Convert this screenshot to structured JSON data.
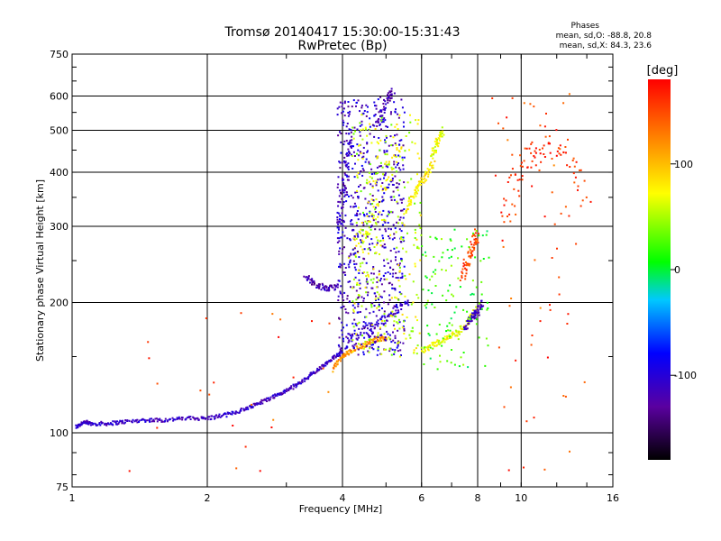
{
  "chart_data": {
    "type": "scatter",
    "title": "Tromsø 20140417 15:30:00-15:31:43",
    "subtitle": "RwPretec (Bp)",
    "xlabel": "Frequency [MHz]",
    "ylabel": "Stationary phase Virtual Height [km]",
    "x_scale": "log",
    "y_scale": "log",
    "xlim": [
      1,
      16
    ],
    "ylim": [
      75,
      750
    ],
    "x_ticks": [
      1,
      2,
      4,
      6,
      8,
      10,
      16
    ],
    "y_ticks": [
      75,
      100,
      200,
      300,
      400,
      500,
      600,
      750
    ],
    "grid": true,
    "colorbar": {
      "label": "[deg]",
      "range": [
        -180,
        180
      ],
      "ticks": [
        100,
        0,
        -100
      ]
    },
    "stats": {
      "heading": "Phases",
      "line_o": "mean, sd,O: -88.8, 20.8",
      "line_x": "mean, sd,X: 84.3, 23.6"
    },
    "traces": [
      {
        "f": [
          1.02,
          1.06,
          1.1,
          1.2,
          1.3,
          1.45,
          1.6,
          1.8,
          2.0,
          2.2,
          2.4,
          2.6,
          2.8,
          3.0,
          3.2,
          3.4,
          3.6,
          3.8,
          4.0
        ],
        "h": [
          103,
          106,
          105,
          105,
          106,
          107,
          107,
          108,
          108,
          110,
          113,
          117,
          121,
          125,
          130,
          136,
          142,
          148,
          155
        ],
        "phase": -110,
        "spread": 0.01
      },
      {
        "f": [
          3.3,
          3.5,
          3.7,
          3.9
        ],
        "h": [
          230,
          220,
          215,
          218
        ],
        "phase": -120,
        "spread": 0.015
      },
      {
        "f": [
          3.8,
          4.0,
          4.2,
          4.5,
          4.8,
          5.0
        ],
        "h": [
          140,
          150,
          155,
          160,
          165,
          165
        ],
        "phase": 120,
        "spread": 0.012
      },
      {
        "f": [
          4.0,
          4.4,
          4.8,
          5.2,
          5.6
        ],
        "h": [
          160,
          170,
          180,
          190,
          200
        ],
        "phase": -105,
        "spread": 0.03
      },
      {
        "f": [
          3.9,
          4.0,
          4.1,
          4.2
        ],
        "h": [
          300,
          350,
          420,
          500
        ],
        "phase": -110,
        "spread": 0.03
      },
      {
        "f": [
          4.2,
          4.6,
          5.0,
          5.4
        ],
        "h": [
          260,
          300,
          380,
          450
        ],
        "phase": 70,
        "spread": 0.04
      },
      {
        "f": [
          4.8,
          5.0,
          5.2
        ],
        "h": [
          520,
          580,
          620
        ],
        "phase": -120,
        "spread": 0.02
      },
      {
        "f": [
          5.5,
          5.8,
          6.1,
          6.4
        ],
        "h": [
          320,
          360,
          390,
          420
        ],
        "phase": 80,
        "spread": 0.02
      },
      {
        "f": [
          6.3,
          6.5,
          6.7
        ],
        "h": [
          430,
          470,
          500
        ],
        "phase": 70,
        "spread": 0.02
      },
      {
        "f": [
          6.0,
          6.4,
          6.8,
          7.2,
          7.6,
          8.0
        ],
        "h": [
          155,
          160,
          165,
          170,
          180,
          195
        ],
        "phase": 70,
        "spread": 0.015
      },
      {
        "f": [
          7.5,
          7.8,
          8.0,
          8.2
        ],
        "h": [
          175,
          185,
          190,
          200
        ],
        "phase": -115,
        "spread": 0.02
      },
      {
        "f": [
          7.4,
          7.6,
          7.8,
          8.0
        ],
        "h": [
          230,
          250,
          270,
          290
        ],
        "phase": 150,
        "spread": 0.03
      },
      {
        "f": [
          9.0,
          10.0,
          11.0,
          12.5,
          14.0
        ],
        "h": [
          300,
          400,
          480,
          450,
          350
        ],
        "phase": 160,
        "spread": 0.08
      }
    ],
    "clouds": [
      {
        "f": [
          3.9,
          5.5
        ],
        "h": [
          150,
          600
        ],
        "phase": -110,
        "count": 700
      },
      {
        "f": [
          4.2,
          6.0
        ],
        "h": [
          150,
          550
        ],
        "phase": 60,
        "count": 320
      },
      {
        "f": [
          6.0,
          8.5
        ],
        "h": [
          140,
          300
        ],
        "phase": 20,
        "count": 120
      },
      {
        "f": [
          8.5,
          14.0
        ],
        "h": [
          80,
          650
        ],
        "phase": 150,
        "count": 60
      },
      {
        "f": [
          1.3,
          3.8
        ],
        "h": [
          78,
          190
        ],
        "phase": 150,
        "count": 25
      }
    ]
  }
}
